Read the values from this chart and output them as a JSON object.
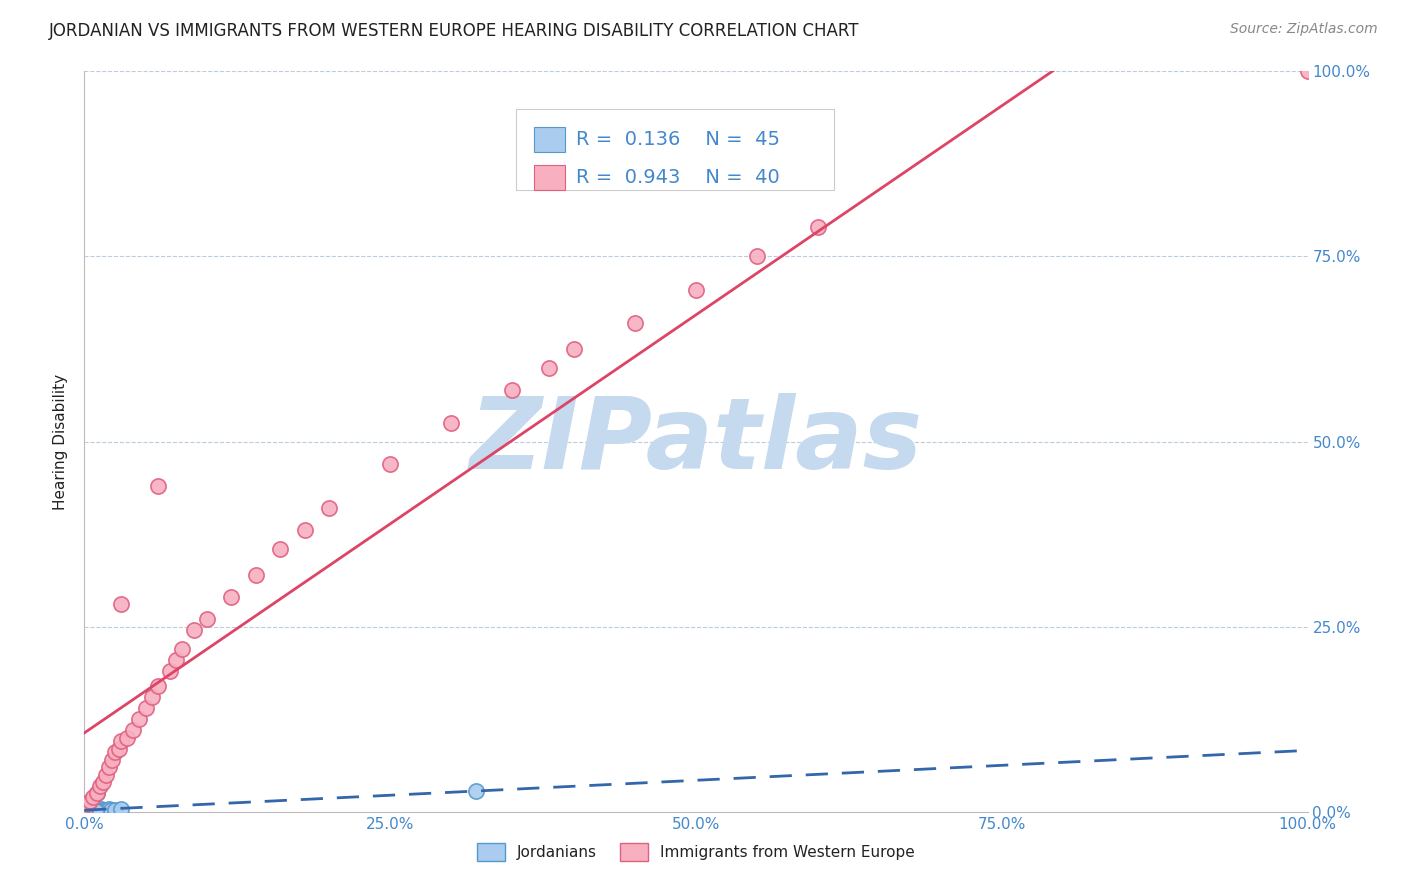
{
  "title": "JORDANIAN VS IMMIGRANTS FROM WESTERN EUROPE HEARING DISABILITY CORRELATION CHART",
  "source": "Source: ZipAtlas.com",
  "ylabel": "Hearing Disability",
  "background_color": "#ffffff",
  "watermark": "ZIPatlas",
  "legend_r1": "0.136",
  "legend_n1": "45",
  "legend_r2": "0.943",
  "legend_n2": "40",
  "series1_label": "Jordanians",
  "series2_label": "Immigrants from Western Europe",
  "series1_color": "#aaccee",
  "series2_color": "#f8b0c0",
  "series1_edge_color": "#5599cc",
  "series2_edge_color": "#e06080",
  "series1_line_color": "#3366aa",
  "series2_line_color": "#dd4466",
  "axis_label_color": "#4488cc",
  "title_color": "#222222",
  "grid_color": "#bbccdd",
  "jordanians_x": [
    0.1,
    0.15,
    0.2,
    0.25,
    0.3,
    0.35,
    0.4,
    0.45,
    0.5,
    0.55,
    0.6,
    0.65,
    0.7,
    0.8,
    0.9,
    1.0,
    1.1,
    1.2,
    1.4,
    1.6,
    1.8,
    2.0,
    2.2,
    2.5,
    3.0,
    0.1,
    0.12,
    0.18,
    0.22,
    0.28,
    0.32,
    0.38,
    0.42,
    0.48,
    0.52,
    0.58,
    0.62,
    0.68,
    0.72,
    0.78,
    0.85,
    0.95,
    1.05,
    32.0,
    0.08
  ],
  "jordanians_y": [
    0.2,
    0.3,
    0.1,
    0.4,
    0.2,
    0.15,
    0.35,
    0.1,
    0.3,
    0.2,
    0.25,
    0.1,
    0.3,
    0.15,
    0.4,
    0.2,
    0.35,
    0.2,
    0.3,
    0.25,
    0.15,
    0.3,
    0.2,
    0.25,
    0.35,
    0.1,
    0.2,
    0.15,
    0.3,
    0.1,
    0.25,
    0.2,
    0.15,
    0.3,
    0.1,
    0.25,
    0.2,
    0.15,
    0.3,
    0.1,
    0.2,
    0.15,
    2.5,
    2.8,
    0.1
  ],
  "immigrants_x": [
    0.3,
    0.5,
    0.7,
    1.0,
    1.3,
    1.5,
    1.8,
    2.0,
    2.3,
    2.5,
    2.8,
    3.0,
    3.5,
    4.0,
    4.5,
    5.0,
    5.5,
    6.0,
    7.0,
    7.5,
    8.0,
    9.0,
    10.0,
    12.0,
    14.0,
    16.0,
    18.0,
    20.0,
    25.0,
    30.0,
    35.0,
    38.0,
    40.0,
    45.0,
    50.0,
    55.0,
    60.0,
    3.0,
    6.0,
    100.0
  ],
  "immigrants_y": [
    1.0,
    1.5,
    2.0,
    2.5,
    3.5,
    4.0,
    5.0,
    6.0,
    7.0,
    8.0,
    8.5,
    9.5,
    10.0,
    11.0,
    12.5,
    14.0,
    15.5,
    17.0,
    19.0,
    20.5,
    22.0,
    24.5,
    26.0,
    29.0,
    32.0,
    35.5,
    38.0,
    41.0,
    47.0,
    52.5,
    57.0,
    60.0,
    62.5,
    66.0,
    70.5,
    75.0,
    79.0,
    28.0,
    44.0,
    100.0
  ],
  "xlim": [
    0,
    100
  ],
  "ylim": [
    0,
    100
  ],
  "yticks": [
    0,
    25,
    50,
    75,
    100
  ],
  "xticks": [
    0,
    25,
    50,
    75,
    100
  ],
  "title_fontsize": 12,
  "source_fontsize": 10,
  "axis_label_fontsize": 11,
  "tick_fontsize": 11,
  "legend_fontsize": 14,
  "watermark_fontsize": 72,
  "watermark_color": "#c5d9ef",
  "legend_box_color_1": "#aaccee",
  "legend_box_color_2": "#f8b0c0"
}
